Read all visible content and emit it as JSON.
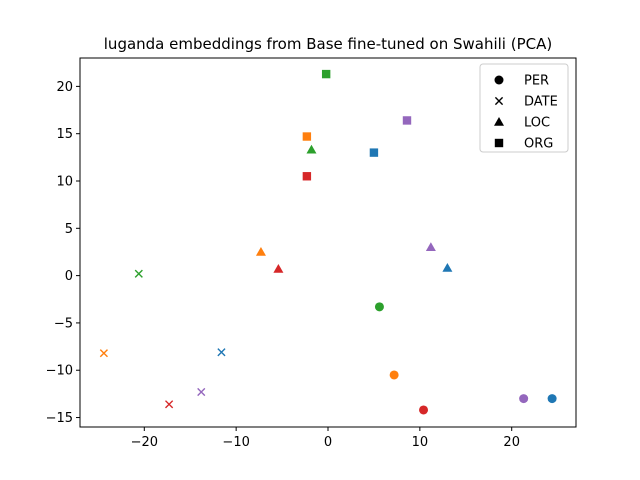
{
  "chart_data": {
    "type": "scatter",
    "title": "luganda embeddings from Base fine-tuned on Swahili (PCA)",
    "xlabel": "",
    "ylabel": "",
    "xlim": [
      -27,
      27
    ],
    "ylim": [
      -16,
      23
    ],
    "xticks": [
      -20,
      -10,
      0,
      10,
      20
    ],
    "yticks": [
      -15,
      -10,
      -5,
      0,
      5,
      10,
      15,
      20
    ],
    "grid": false,
    "legend_placement": "top-right",
    "legend": [
      {
        "label": "PER",
        "marker": "circle"
      },
      {
        "label": "DATE",
        "marker": "x"
      },
      {
        "label": "LOC",
        "marker": "triangle"
      },
      {
        "label": "ORG",
        "marker": "square"
      }
    ],
    "points": [
      {
        "x": 5.6,
        "y": -3.3,
        "marker": "circle",
        "color": "#2ca02c"
      },
      {
        "x": 7.2,
        "y": -10.5,
        "marker": "circle",
        "color": "#ff7f0e"
      },
      {
        "x": 10.4,
        "y": -14.2,
        "marker": "circle",
        "color": "#d62728"
      },
      {
        "x": 21.3,
        "y": -13.0,
        "marker": "circle",
        "color": "#9467bd"
      },
      {
        "x": 24.4,
        "y": -13.0,
        "marker": "circle",
        "color": "#1f77b4"
      },
      {
        "x": -20.6,
        "y": 0.2,
        "marker": "x",
        "color": "#2ca02c"
      },
      {
        "x": -24.4,
        "y": -8.2,
        "marker": "x",
        "color": "#ff7f0e"
      },
      {
        "x": -11.6,
        "y": -8.1,
        "marker": "x",
        "color": "#1f77b4"
      },
      {
        "x": -13.8,
        "y": -12.3,
        "marker": "x",
        "color": "#9467bd"
      },
      {
        "x": -17.3,
        "y": -13.6,
        "marker": "x",
        "color": "#d62728"
      },
      {
        "x": -1.8,
        "y": 13.3,
        "marker": "triangle",
        "color": "#2ca02c"
      },
      {
        "x": -7.3,
        "y": 2.5,
        "marker": "triangle",
        "color": "#ff7f0e"
      },
      {
        "x": -5.4,
        "y": 0.7,
        "marker": "triangle",
        "color": "#d62728"
      },
      {
        "x": 11.2,
        "y": 3.0,
        "marker": "triangle",
        "color": "#9467bd"
      },
      {
        "x": 13.0,
        "y": 0.8,
        "marker": "triangle",
        "color": "#1f77b4"
      },
      {
        "x": -0.2,
        "y": 21.3,
        "marker": "square",
        "color": "#2ca02c"
      },
      {
        "x": -2.3,
        "y": 14.7,
        "marker": "square",
        "color": "#ff7f0e"
      },
      {
        "x": -2.3,
        "y": 10.5,
        "marker": "square",
        "color": "#d62728"
      },
      {
        "x": 5.0,
        "y": 13.0,
        "marker": "square",
        "color": "#1f77b4"
      },
      {
        "x": 8.6,
        "y": 16.4,
        "marker": "square",
        "color": "#9467bd"
      }
    ]
  }
}
